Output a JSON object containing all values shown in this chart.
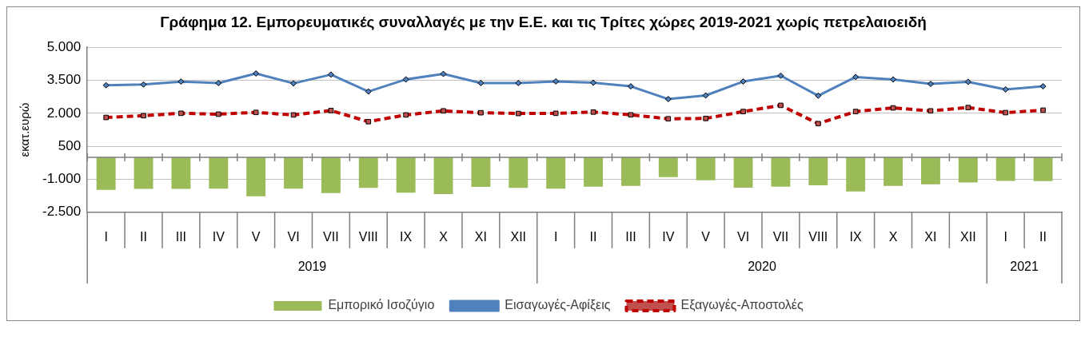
{
  "chart_data": {
    "type": "bar",
    "title": "Γράφημα 12. Εμπορευματικές συναλλαγές με την Ε.Ε. και τις Τρίτες χώρες  2019-2021  χωρίς πετρελαιοειδή",
    "ylabel": "εκατ.ευρώ",
    "categories": [
      "I",
      "II",
      "III",
      "IV",
      "V",
      "VI",
      "VII",
      "VIII",
      "IX",
      "X",
      "XI",
      "XII",
      "I",
      "II",
      "III",
      "IV",
      "V",
      "VI",
      "VII",
      "VIII",
      "IX",
      "X",
      "XI",
      "XII",
      "I",
      "II"
    ],
    "annotations": [
      "2019",
      "2020",
      "2021"
    ],
    "series": [
      {
        "name": "Εμπορικό Ισοζύγιο",
        "color": "#9bbb59",
        "values": [
          -1480,
          -1440,
          -1440,
          -1430,
          -1770,
          -1430,
          -1630,
          -1390,
          -1610,
          -1670,
          -1350,
          -1390,
          -1430,
          -1340,
          -1300,
          -900,
          -1050,
          -1380,
          -1340,
          -1270,
          -1550,
          -1300,
          -1230,
          -1150,
          -1070,
          -1080
        ]
      },
      {
        "name": "Εισαγωγές-Αφίξεις",
        "type": "line",
        "color": "#4f81bd",
        "marker": "diamond",
        "line_style": "solid",
        "values": [
          3275,
          3310,
          3440,
          3375,
          3810,
          3360,
          3760,
          2990,
          3540,
          3790,
          3375,
          3375,
          3450,
          3390,
          3225,
          2645,
          2810,
          3445,
          3710,
          2800,
          3650,
          3540,
          3335,
          3430,
          3085,
          3225
        ]
      },
      {
        "name": "Εξαγωγές-Αποστολές",
        "type": "line",
        "color": "#c00000",
        "marker": "square",
        "line_style": "dashed",
        "values": [
          1810,
          1890,
          2000,
          1960,
          2040,
          1925,
          2125,
          1620,
          1925,
          2110,
          2025,
          1990,
          2000,
          2055,
          1930,
          1750,
          1765,
          2080,
          2360,
          1530,
          2080,
          2245,
          2110,
          2260,
          2030,
          2140
        ]
      }
    ],
    "ylim": [
      -2500,
      5000
    ],
    "yticks": [
      {
        "value": -2500,
        "label": "-2.500"
      },
      {
        "value": -1000,
        "label": "-1.000"
      },
      500,
      {
        "value": 2000,
        "label": "2.000"
      },
      {
        "value": 3500,
        "label": "3.500"
      },
      {
        "value": 5000,
        "label": "5.000"
      }
    ],
    "grid": "y",
    "legend": "bottom"
  }
}
